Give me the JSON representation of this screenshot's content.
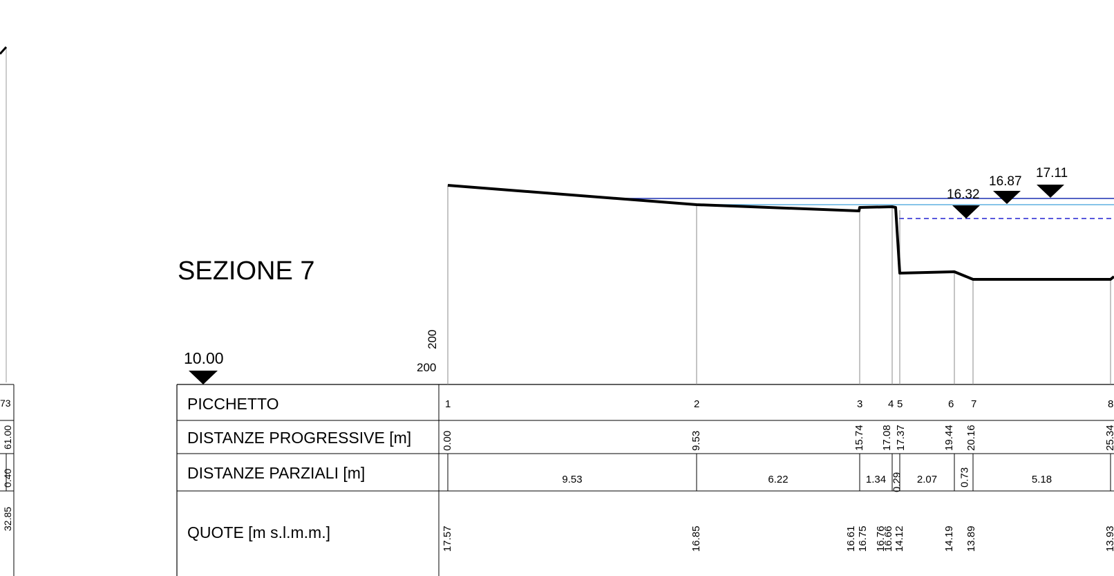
{
  "title": "SEZIONE 7",
  "datum_value": "10.00",
  "scale": {
    "horizontal": "200",
    "vertical": "200"
  },
  "rows": {
    "picchetto": "PICCHETTO",
    "progressive": "DISTANZE PROGRESSIVE [m]",
    "parziali": "DISTANZE PARZIALI [m]",
    "quote": "QUOTE [m s.l.m.m.]"
  },
  "stations": [
    {
      "id": "1",
      "progressive": "0.00",
      "quote": "17.57"
    },
    {
      "id": "2",
      "progressive": "9.53",
      "quote": "16.85"
    },
    {
      "id": "3",
      "progressive": "15.74",
      "quote": "16.61"
    },
    {
      "id": "4",
      "progressive": "17.08",
      "quote": "16.76"
    },
    {
      "id": "5",
      "progressive": "17.37",
      "quote": "14.12"
    },
    {
      "id": "6",
      "progressive": "19.44",
      "quote": "14.19"
    },
    {
      "id": "7",
      "progressive": "20.16",
      "quote": "13.89"
    },
    {
      "id": "8",
      "progressive": "25.34",
      "quote": "13.93"
    }
  ],
  "quote_extra": [
    "16.75",
    "16.66"
  ],
  "partials": [
    "9.53",
    "6.22",
    "1.34",
    "0.29",
    "2.07",
    "0.73",
    "5.18"
  ],
  "water_levels": [
    "16.32",
    "16.87",
    "17.11"
  ],
  "left_fragment": {
    "picchetto": "73",
    "progressive": "61.00",
    "parziali": "0.40",
    "quote": "32.85"
  },
  "colors": {
    "line": "#000000",
    "water_dark": "#1a2fb0",
    "water_light": "#5fb0e0",
    "water_dashed": "#2020d0"
  }
}
